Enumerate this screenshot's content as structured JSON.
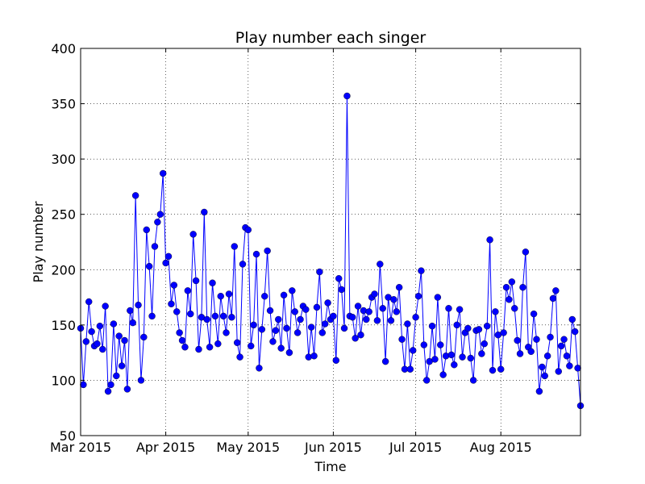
{
  "chart_data": {
    "type": "line",
    "title": "Play number each singer",
    "xlabel": "Time",
    "ylabel": "Play number",
    "x_start": "2015-03-01",
    "x_end": "2015-08-30",
    "ylim": [
      50,
      400
    ],
    "yticks": [
      50,
      100,
      150,
      200,
      250,
      300,
      350,
      400
    ],
    "xticks": [
      {
        "date": "2015-03-01",
        "label": "Mar 2015"
      },
      {
        "date": "2015-04-01",
        "label": "Apr 2015"
      },
      {
        "date": "2015-05-01",
        "label": "May 2015"
      },
      {
        "date": "2015-06-01",
        "label": "Jun 2015"
      },
      {
        "date": "2015-07-01",
        "label": "Jul 2015"
      },
      {
        "date": "2015-08-01",
        "label": "Aug 2015"
      }
    ],
    "grid": true,
    "series": [
      {
        "color": "#0000ff",
        "marker": "circle",
        "values": [
          147,
          96,
          135,
          171,
          144,
          131,
          133,
          149,
          128,
          167,
          90,
          96,
          151,
          104,
          140,
          113,
          136,
          92,
          163,
          152,
          267,
          168,
          100,
          139,
          236,
          203,
          158,
          221,
          243,
          250,
          287,
          206,
          212,
          169,
          186,
          162,
          143,
          136,
          130,
          181,
          160,
          232,
          190,
          128,
          157,
          252,
          155,
          130,
          188,
          158,
          133,
          176,
          158,
          143,
          178,
          157,
          221,
          134,
          121,
          205,
          238,
          236,
          131,
          150,
          214,
          111,
          146,
          176,
          217,
          163,
          135,
          145,
          155,
          129,
          177,
          147,
          125,
          181,
          162,
          143,
          155,
          167,
          164,
          121,
          148,
          122,
          166,
          198,
          143,
          151,
          170,
          155,
          158,
          118,
          192,
          182,
          147,
          357,
          158,
          157,
          138,
          167,
          141,
          163,
          155,
          162,
          175,
          178,
          154,
          205,
          165,
          117,
          175,
          154,
          173,
          162,
          184,
          137,
          110,
          151,
          110,
          127,
          157,
          176,
          199,
          132,
          100,
          117,
          149,
          119,
          175,
          132,
          105,
          122,
          165,
          123,
          114,
          150,
          164,
          121,
          143,
          147,
          120,
          100,
          145,
          146,
          124,
          133,
          149,
          227,
          109,
          162,
          141,
          110,
          143,
          184,
          173,
          189,
          165,
          136,
          124,
          184,
          216,
          130,
          126,
          160,
          137,
          90,
          112,
          104,
          122,
          139,
          174,
          181,
          108,
          131,
          137,
          122,
          113,
          155,
          144,
          111,
          77
        ]
      }
    ]
  }
}
